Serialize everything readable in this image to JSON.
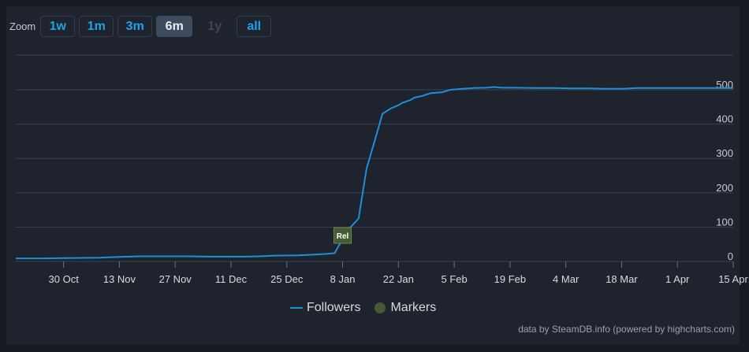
{
  "zoom": {
    "label": "Zoom",
    "buttons": [
      {
        "label": "1w",
        "state": "normal"
      },
      {
        "label": "1m",
        "state": "normal"
      },
      {
        "label": "3m",
        "state": "normal"
      },
      {
        "label": "6m",
        "state": "active"
      },
      {
        "label": "1y",
        "state": "disabled"
      },
      {
        "label": "all",
        "state": "normal"
      }
    ]
  },
  "legend": {
    "followers": "Followers",
    "markers": "Markers"
  },
  "credits": "data by SteamDB.info (powered by highcharts.com)",
  "colors": {
    "line": "#1f8fd8",
    "marker": "#465a33",
    "grid": "#3a4250",
    "accent": "#1fa3e6"
  },
  "chart_data": {
    "type": "line",
    "ylim": [
      0,
      500
    ],
    "yticks": [
      0,
      100,
      200,
      300,
      400,
      500
    ],
    "x_start": "2023-10-18",
    "x_end": "2024-04-15",
    "xticks": [
      {
        "date": "2023-10-30",
        "label": "30 Oct"
      },
      {
        "date": "2023-11-13",
        "label": "13 Nov"
      },
      {
        "date": "2023-11-27",
        "label": "27 Nov"
      },
      {
        "date": "2023-12-11",
        "label": "11 Dec"
      },
      {
        "date": "2023-12-25",
        "label": "25 Dec"
      },
      {
        "date": "2024-01-08",
        "label": "8 Jan"
      },
      {
        "date": "2024-01-22",
        "label": "22 Jan"
      },
      {
        "date": "2024-02-05",
        "label": "5 Feb"
      },
      {
        "date": "2024-02-19",
        "label": "19 Feb"
      },
      {
        "date": "2024-03-04",
        "label": "4 Mar"
      },
      {
        "date": "2024-03-18",
        "label": "18 Mar"
      },
      {
        "date": "2024-04-01",
        "label": "1 Apr"
      },
      {
        "date": "2024-04-15",
        "label": "15 Apr"
      }
    ],
    "series": [
      {
        "name": "Followers",
        "points": [
          [
            "2023-10-18",
            9
          ],
          [
            "2023-10-25",
            9
          ],
          [
            "2023-11-01",
            10
          ],
          [
            "2023-11-08",
            11
          ],
          [
            "2023-11-13",
            13
          ],
          [
            "2023-11-18",
            15
          ],
          [
            "2023-11-25",
            15
          ],
          [
            "2023-12-01",
            15
          ],
          [
            "2023-12-05",
            14
          ],
          [
            "2023-12-15",
            14
          ],
          [
            "2023-12-18",
            15
          ],
          [
            "2023-12-22",
            17
          ],
          [
            "2023-12-28",
            18
          ],
          [
            "2024-01-01",
            20
          ],
          [
            "2024-01-04",
            22
          ],
          [
            "2024-01-06",
            24
          ],
          [
            "2024-01-07",
            45
          ],
          [
            "2024-01-09",
            80
          ],
          [
            "2024-01-10",
            100
          ],
          [
            "2024-01-12",
            125
          ],
          [
            "2024-01-14",
            270
          ],
          [
            "2024-01-17",
            390
          ],
          [
            "2024-01-18",
            430
          ],
          [
            "2024-01-20",
            445
          ],
          [
            "2024-01-22",
            455
          ],
          [
            "2024-01-23",
            462
          ],
          [
            "2024-01-25",
            470
          ],
          [
            "2024-01-26",
            477
          ],
          [
            "2024-01-28",
            482
          ],
          [
            "2024-01-30",
            490
          ],
          [
            "2024-02-02",
            493
          ],
          [
            "2024-02-04",
            500
          ],
          [
            "2024-02-07",
            503
          ],
          [
            "2024-02-10",
            505
          ],
          [
            "2024-02-13",
            506
          ],
          [
            "2024-02-15",
            508
          ],
          [
            "2024-02-17",
            506
          ],
          [
            "2024-02-20",
            506
          ],
          [
            "2024-02-25",
            505
          ],
          [
            "2024-03-01",
            505
          ],
          [
            "2024-03-05",
            504
          ],
          [
            "2024-03-10",
            504
          ],
          [
            "2024-03-14",
            503
          ],
          [
            "2024-03-18",
            503
          ],
          [
            "2024-03-22",
            505
          ],
          [
            "2024-03-28",
            505
          ],
          [
            "2024-04-05",
            505
          ],
          [
            "2024-04-15",
            505
          ]
        ]
      }
    ],
    "markers": [
      {
        "date": "2024-01-08",
        "label": "Rel"
      }
    ]
  }
}
